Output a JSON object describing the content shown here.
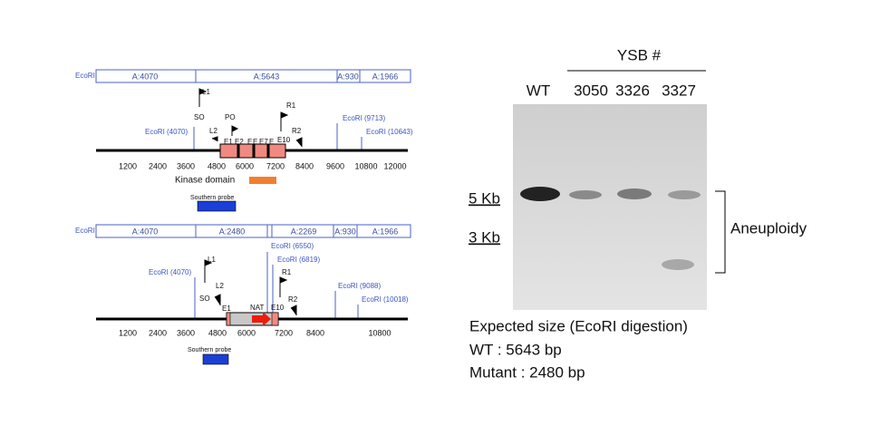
{
  "wild_type_map": {
    "enzyme": "EcoRI",
    "fragments": [
      "A:4070",
      "A:5643",
      "A:930",
      "A:1966"
    ],
    "sites": [
      "EcoRI (4070)",
      "EcoRI (9713)",
      "EcoRI (10643)"
    ],
    "primers": [
      "L1",
      "SO",
      "PO",
      "L2",
      "R1",
      "R2"
    ],
    "exons": [
      "E1",
      "E2",
      "E",
      "E",
      "E7",
      "E",
      "E10"
    ],
    "ticks": [
      "1200",
      "2400",
      "3600",
      "4800",
      "6000",
      "7200",
      "8400",
      "9600",
      "10800",
      "12000"
    ],
    "domain": "Kinase domain",
    "probe": "Southern probe"
  },
  "mutant_map": {
    "enzyme": "EcoRI",
    "fragments": [
      "A:4070",
      "A:2480",
      "A:2269",
      "A:930",
      "A:1966"
    ],
    "sites": [
      "EcoRI (6550)",
      "EcoRI (6819)",
      "EcoRI (4070)",
      "EcoRI (9088)",
      "EcoRI (10018)"
    ],
    "primers": [
      "L1",
      "R1",
      "SO",
      "L2",
      "R2"
    ],
    "marker": "NAT",
    "exons": [
      "E1",
      "E10"
    ],
    "ticks": [
      "1200",
      "2400",
      "3600",
      "4800",
      "6000",
      "7200",
      "8400",
      "10800"
    ],
    "probe": "Southern probe"
  },
  "blot": {
    "group": "YSB #",
    "lanes": [
      "WT",
      "3050",
      "3326",
      "3327"
    ],
    "sizes": [
      "5 Kb",
      "3 Kb"
    ],
    "annotation": "Aneuploidy"
  },
  "caption": [
    "Expected size (EcoRI digestion)",
    "WT : 5643 bp",
    "Mutant : 2480 bp"
  ]
}
